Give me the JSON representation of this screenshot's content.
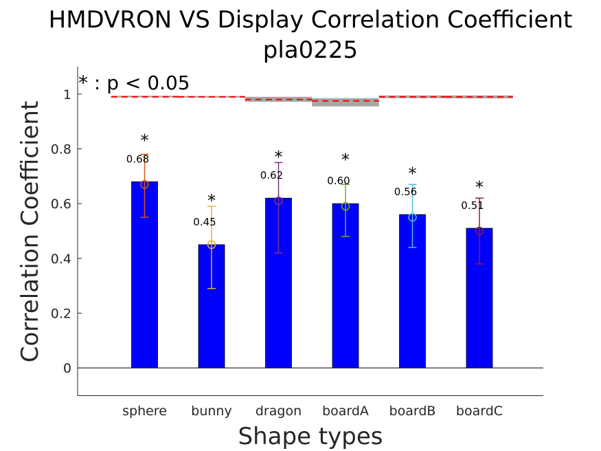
{
  "chart_data": {
    "type": "bar",
    "title": "HMDVRON VS Display Correlation Coefficient",
    "subtitle": "pla0225",
    "xlabel": "Shape types",
    "ylabel": "Correlation Coefficient",
    "ylim": [
      -0.1,
      1.1
    ],
    "yticks": [
      0,
      0.2,
      0.4,
      0.6,
      0.8,
      1
    ],
    "ytick_labels": [
      "0",
      "0.2",
      "0.4",
      "0.6",
      "0.8",
      "1"
    ],
    "categories": [
      "sphere",
      "bunny",
      "dragon",
      "boardA",
      "boardB",
      "boardC"
    ],
    "values": [
      0.68,
      0.45,
      0.62,
      0.6,
      0.56,
      0.51
    ],
    "value_labels": [
      "0.68",
      "0.45",
      "0.62",
      "0.60",
      "0.56",
      "0.51"
    ],
    "bar_color": "#0000ff",
    "markers": {
      "means": [
        0.67,
        0.45,
        0.61,
        0.59,
        0.55,
        0.5
      ],
      "lower": [
        0.55,
        0.29,
        0.42,
        0.48,
        0.44,
        0.38
      ],
      "upper": [
        0.78,
        0.59,
        0.75,
        0.67,
        0.67,
        0.62
      ],
      "colors": [
        "#d95319",
        "#edb120",
        "#7e2f8e",
        "#77ac30",
        "#4dbeee",
        "#a2142f"
      ]
    },
    "significance": {
      "symbol": "*",
      "marked": [
        true,
        true,
        true,
        true,
        true,
        true
      ],
      "star_y": [
        0.84,
        0.62,
        0.78,
        0.77,
        0.72,
        0.67
      ],
      "legend": "* : p < 0.05"
    },
    "reference": {
      "color_line": "#ff0000",
      "color_band": "#a6a6a6",
      "values": [
        0.99,
        0.99,
        0.98,
        0.975,
        0.99,
        0.99
      ],
      "band_low": [
        0.988,
        0.987,
        0.972,
        0.955,
        0.985,
        0.984
      ],
      "band_high": [
        0.994,
        0.993,
        0.99,
        0.985,
        0.995,
        0.995
      ]
    },
    "grid": false,
    "legend": "none"
  }
}
